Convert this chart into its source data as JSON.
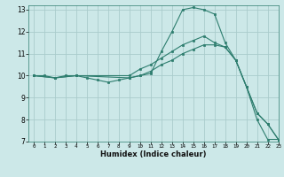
{
  "xlabel": "Humidex (Indice chaleur)",
  "xlim": [
    -0.5,
    23
  ],
  "ylim": [
    7,
    13.2
  ],
  "xticks": [
    0,
    1,
    2,
    3,
    4,
    5,
    6,
    7,
    8,
    9,
    10,
    11,
    12,
    13,
    14,
    15,
    16,
    17,
    18,
    19,
    20,
    21,
    22,
    23
  ],
  "yticks": [
    7,
    8,
    9,
    10,
    11,
    12,
    13
  ],
  "bg_color": "#cce8e8",
  "grid_color": "#aacccc",
  "line_color": "#2d7d6e",
  "line1_x": [
    0,
    1,
    2,
    3,
    4,
    5,
    6,
    7,
    8,
    9,
    10,
    11,
    12,
    13,
    14,
    15,
    16,
    17,
    18,
    19,
    20,
    21,
    22,
    23
  ],
  "line1_y": [
    10.0,
    10.0,
    9.9,
    10.0,
    10.0,
    9.9,
    9.8,
    9.7,
    9.8,
    9.9,
    10.0,
    10.1,
    11.1,
    12.0,
    13.0,
    13.1,
    13.0,
    12.8,
    11.5,
    10.7,
    9.5,
    8.0,
    7.1,
    7.1
  ],
  "line2_x": [
    0,
    2,
    4,
    9,
    10,
    11,
    12,
    13,
    14,
    15,
    16,
    17,
    18,
    19,
    20,
    21,
    22,
    23
  ],
  "line2_y": [
    10.0,
    9.9,
    10.0,
    10.0,
    10.3,
    10.5,
    10.8,
    11.1,
    11.4,
    11.6,
    11.8,
    11.5,
    11.3,
    10.7,
    9.5,
    8.3,
    7.8,
    7.1
  ],
  "line3_x": [
    0,
    2,
    4,
    9,
    10,
    11,
    12,
    13,
    14,
    15,
    16,
    17,
    18,
    19,
    20,
    21,
    22,
    23
  ],
  "line3_y": [
    10.0,
    9.9,
    10.0,
    9.9,
    10.0,
    10.2,
    10.5,
    10.7,
    11.0,
    11.2,
    11.4,
    11.4,
    11.3,
    10.7,
    9.5,
    8.3,
    7.8,
    7.1
  ]
}
